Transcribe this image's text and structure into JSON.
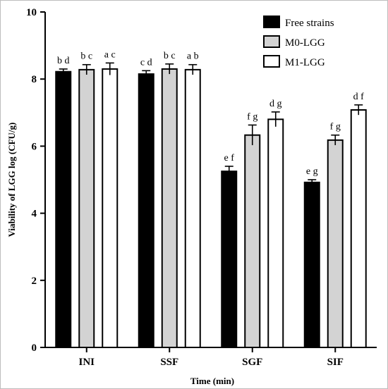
{
  "chart_data": {
    "type": "bar",
    "title": "",
    "xlabel": "Time (min)",
    "ylabel": "Viability of LGG log (CFU/g)",
    "ylim": [
      0,
      10
    ],
    "yticks": [
      "0",
      "2",
      "4",
      "6",
      "8",
      "10"
    ],
    "categories": [
      "INI",
      "SSF",
      "SGF",
      "SIF"
    ],
    "legend_position": "top-right",
    "series": [
      {
        "name": "Free strains",
        "color": "#000000",
        "values": [
          8.22,
          8.15,
          5.25,
          4.92
        ],
        "errors": [
          0.08,
          0.1,
          0.15,
          0.08
        ],
        "labels": [
          "b d",
          "c d",
          "e f",
          "e g"
        ]
      },
      {
        "name": "M0-LGG",
        "color": "#d3d3d3",
        "values": [
          8.28,
          8.3,
          6.33,
          6.18
        ],
        "errors": [
          0.15,
          0.15,
          0.3,
          0.15
        ],
        "labels": [
          "b c",
          "b c",
          "f g",
          "f g"
        ]
      },
      {
        "name": "M1-LGG",
        "color": "#ffffff",
        "values": [
          8.3,
          8.28,
          6.8,
          7.08
        ],
        "errors": [
          0.18,
          0.15,
          0.22,
          0.15
        ],
        "labels": [
          "a c",
          "a b",
          "d g",
          "d f"
        ]
      }
    ]
  }
}
